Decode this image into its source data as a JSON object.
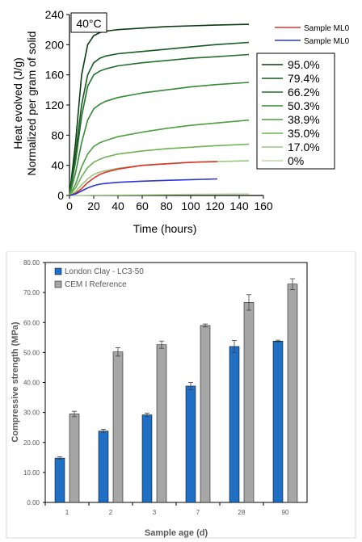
{
  "chart_data": [
    {
      "type": "line",
      "title": "",
      "annotation": "40°C",
      "xlabel": "Time (hours)",
      "ylabel_lines": [
        "Heat evolved (J/g)",
        "Normalized per gram of solid"
      ],
      "xlim": [
        0,
        160
      ],
      "ylim": [
        0,
        240
      ],
      "xticks": [
        0,
        20,
        40,
        60,
        80,
        100,
        120,
        140,
        160
      ],
      "yticks": [
        0,
        40,
        80,
        120,
        160,
        200,
        240
      ],
      "grid": false,
      "legend_top": [
        {
          "name": "Sample ML0",
          "color": "#e0302a"
        },
        {
          "name": "Sample ML0",
          "color": "#2b35d6"
        }
      ],
      "legend_box": [
        {
          "name": "95.0%",
          "color": "#0b3d12"
        },
        {
          "name": "79.4%",
          "color": "#145a1f"
        },
        {
          "name": "66.2%",
          "color": "#22702b"
        },
        {
          "name": "50.3%",
          "color": "#358a36"
        },
        {
          "name": "38.9%",
          "color": "#4d9f40"
        },
        {
          "name": "35.0%",
          "color": "#6fb356"
        },
        {
          "name": "17.0%",
          "color": "#96c77a"
        },
        {
          "name": "0%",
          "color": "#bcdca5"
        }
      ],
      "series": [
        {
          "name": "95.0%",
          "color": "#0b3d12",
          "x": [
            0,
            5,
            10,
            15,
            20,
            25,
            30,
            40,
            60,
            80,
            100,
            120,
            148
          ],
          "y": [
            0,
            70,
            160,
            200,
            212,
            216,
            218,
            220,
            222,
            224,
            225,
            226,
            227
          ]
        },
        {
          "name": "79.4%",
          "color": "#145a1f",
          "x": [
            0,
            5,
            10,
            15,
            20,
            25,
            30,
            40,
            60,
            80,
            100,
            120,
            148
          ],
          "y": [
            0,
            55,
            120,
            160,
            176,
            182,
            185,
            188,
            191,
            194,
            197,
            200,
            203
          ]
        },
        {
          "name": "66.2%",
          "color": "#22702b",
          "x": [
            0,
            5,
            10,
            15,
            20,
            25,
            30,
            40,
            60,
            80,
            100,
            120,
            148
          ],
          "y": [
            0,
            45,
            105,
            145,
            160,
            165,
            168,
            172,
            176,
            179,
            182,
            184,
            187
          ]
        },
        {
          "name": "50.3%",
          "color": "#358a36",
          "x": [
            0,
            5,
            10,
            15,
            20,
            25,
            30,
            40,
            60,
            80,
            100,
            120,
            148
          ],
          "y": [
            0,
            30,
            70,
            100,
            115,
            121,
            125,
            130,
            136,
            140,
            144,
            147,
            150
          ]
        },
        {
          "name": "38.9%",
          "color": "#4d9f40",
          "x": [
            0,
            5,
            10,
            15,
            20,
            25,
            30,
            40,
            60,
            80,
            100,
            120,
            148
          ],
          "y": [
            0,
            15,
            38,
            55,
            65,
            70,
            73,
            78,
            84,
            89,
            93,
            96,
            100
          ]
        },
        {
          "name": "35.0%",
          "color": "#6fb356",
          "x": [
            0,
            5,
            10,
            15,
            20,
            25,
            30,
            40,
            60,
            80,
            100,
            120,
            148
          ],
          "y": [
            0,
            10,
            25,
            37,
            44,
            48,
            51,
            55,
            59,
            62,
            64,
            66,
            68
          ]
        },
        {
          "name": "17.0%",
          "color": "#96c77a",
          "x": [
            0,
            5,
            10,
            15,
            20,
            25,
            30,
            40,
            60,
            80,
            100,
            120,
            148
          ],
          "y": [
            0,
            5,
            14,
            22,
            28,
            31,
            33,
            36,
            40,
            42,
            44,
            45,
            46
          ]
        },
        {
          "name": "0%",
          "color": "#bcdca5",
          "x": [
            0,
            20,
            60,
            100,
            148
          ],
          "y": [
            0,
            0.5,
            1,
            1.5,
            2
          ]
        },
        {
          "name": "Sample ML0",
          "color": "#e0302a",
          "x": [
            0,
            5,
            10,
            15,
            20,
            25,
            30,
            40,
            60,
            80,
            100,
            122
          ],
          "y": [
            0,
            3,
            9,
            17,
            23,
            28,
            31,
            35,
            40,
            42,
            44,
            45
          ]
        },
        {
          "name": "Sample ML0",
          "color": "#2b35d6",
          "x": [
            0,
            5,
            10,
            15,
            20,
            25,
            30,
            40,
            60,
            80,
            100,
            122
          ],
          "y": [
            0,
            2,
            6,
            10,
            13,
            15,
            16,
            17.5,
            19,
            20,
            21,
            22
          ]
        }
      ]
    },
    {
      "type": "bar",
      "title": "",
      "xlabel": "Sample age (d)",
      "ylabel": "Compressive strength (MPa)",
      "ylim": [
        0,
        80
      ],
      "yticks": [
        "0.00",
        "10.00",
        "20.00",
        "30.00",
        "40.00",
        "50.00",
        "60.00",
        "70.00",
        "80.00"
      ],
      "grid": false,
      "legend_position": "top-left",
      "categories": [
        "1",
        "2",
        "3",
        "7",
        "28",
        "90"
      ],
      "series": [
        {
          "name": "London Clay - LC3-50",
          "color": "#1f6fc4",
          "values": [
            14.8,
            23.8,
            29.2,
            38.8,
            52.0,
            53.8
          ],
          "errors": [
            0.4,
            0.6,
            0.6,
            1.2,
            2.0,
            0.3
          ]
        },
        {
          "name": "CEM I Reference",
          "color": "#a6a6a6",
          "values": [
            29.5,
            50.2,
            52.6,
            59.0,
            66.7,
            72.8
          ],
          "errors": [
            0.9,
            1.4,
            1.2,
            0.5,
            2.6,
            1.8
          ]
        }
      ]
    }
  ]
}
